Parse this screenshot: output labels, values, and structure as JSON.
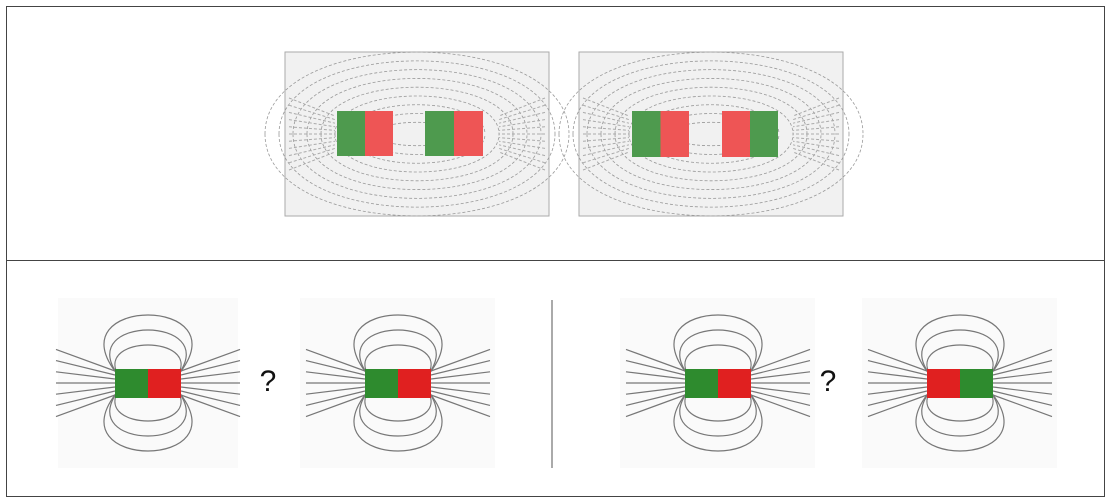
{
  "bottom": {
    "left": {
      "question": "?"
    },
    "right": {
      "question": "?"
    }
  }
}
